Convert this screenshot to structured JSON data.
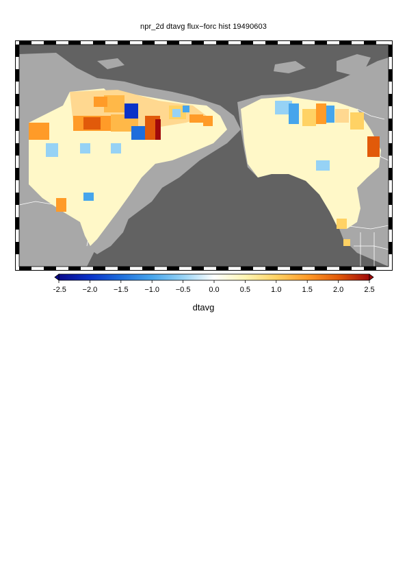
{
  "title": "npr_2d dtavg flux−forc hist 19490603",
  "variable_label": "dtavg",
  "map": {
    "ocean_color": "#626262",
    "land_color": "#a8a8a8",
    "border_color": "#ffffff"
  },
  "colorbar": {
    "ticks": [
      "−2.5",
      "−2.0",
      "−1.5",
      "−1.0",
      "−0.5",
      "0.0",
      "0.5",
      "1.0",
      "1.5",
      "2.0",
      "2.5"
    ],
    "range": [
      -2.5,
      2.5
    ],
    "colors": [
      "#0a0a8c",
      "#0a32c8",
      "#1e6edc",
      "#46a5ec",
      "#96d2f5",
      "#ffffff",
      "#fff5b4",
      "#ffd264",
      "#ff9b28",
      "#e15a0a",
      "#a00a0a"
    ]
  }
}
